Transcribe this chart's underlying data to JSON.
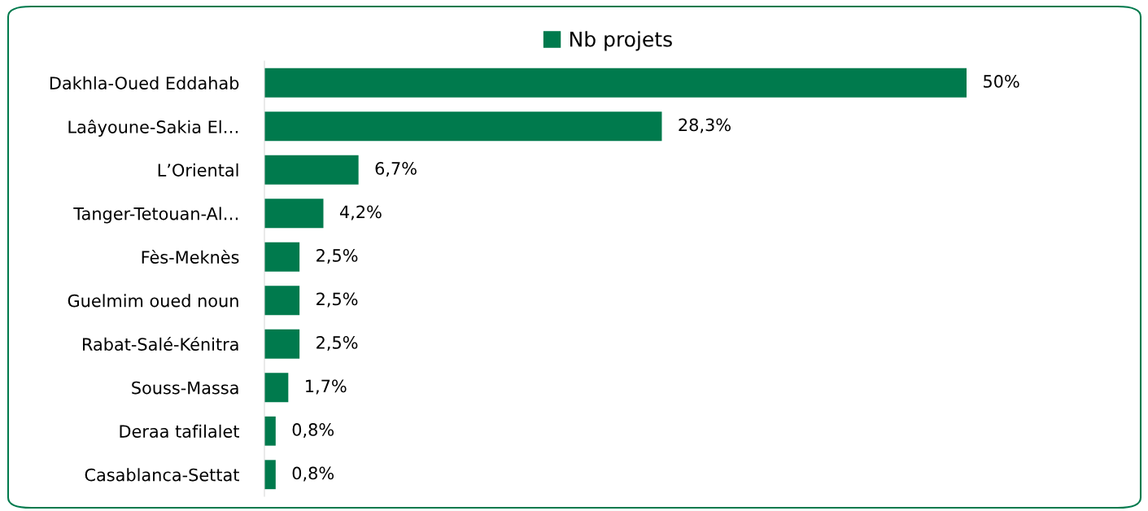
{
  "chart_data": {
    "type": "bar",
    "orientation": "horizontal",
    "categories": [
      "Dakhla-Oued Eddahab",
      "Laâyoune-Sakia El…",
      "L’Oriental",
      "Tanger-Tetouan-Al…",
      "Fès-Meknès",
      "Guelmim oued noun",
      "Rabat-Salé-Kénitra",
      "Souss-Massa",
      "Deraa tafilalet",
      "Casablanca-Settat"
    ],
    "series": [
      {
        "name": "Nb projets",
        "color": "#007a4d",
        "values": [
          50,
          28.3,
          6.7,
          4.2,
          2.5,
          2.5,
          2.5,
          1.7,
          0.8,
          0.8
        ],
        "value_labels": [
          "50%",
          "28,3%",
          "6,7%",
          "4,2%",
          "2,5%",
          "2,5%",
          "2,5%",
          "1,7%",
          "0,8%",
          "0,8%"
        ]
      }
    ],
    "legend": "top",
    "grid": false,
    "tick_labels": "y"
  }
}
